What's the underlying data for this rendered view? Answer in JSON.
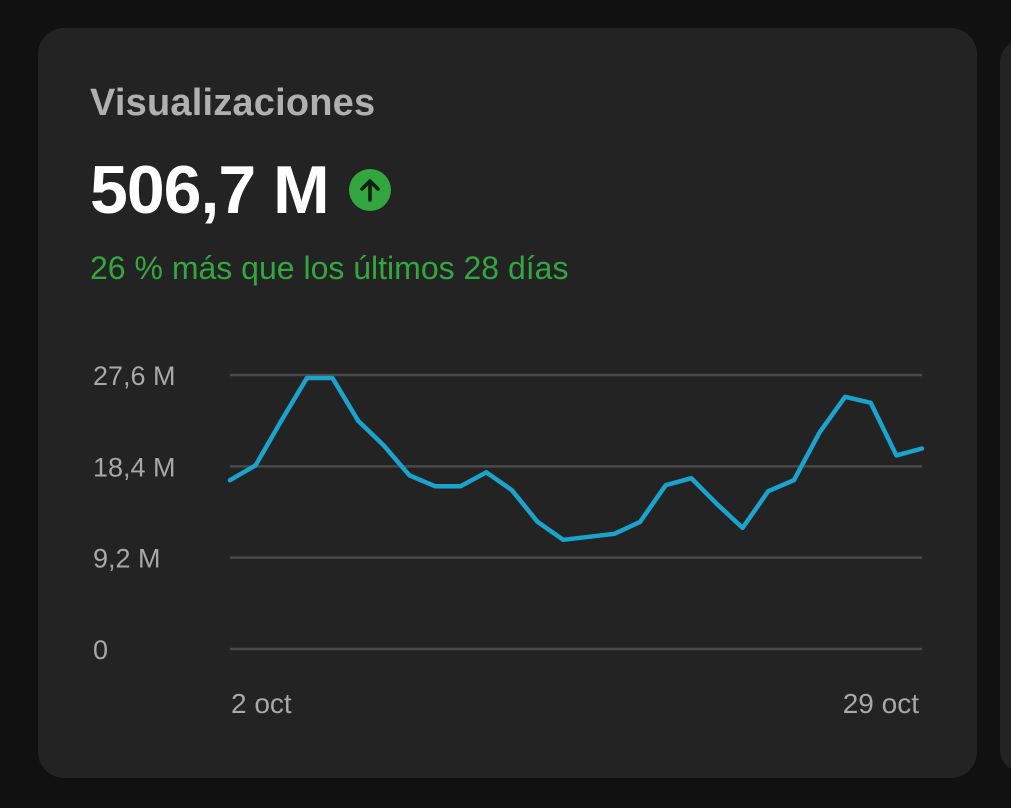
{
  "card": {
    "title": "Visualizaciones",
    "value": "506,7 M",
    "trend_icon": "arrow-up-circle-icon",
    "delta_text": "26 % más que los últimos 28 días"
  },
  "colors": {
    "card_bg": "#232323",
    "page_bg": "#111111",
    "positive": "#33a63f",
    "line": "#1aa3cc",
    "grid": "#4a4a4a",
    "axis_text": "#a8a8a8"
  },
  "chart_data": {
    "type": "line",
    "x_tick_labels": [
      "2 oct",
      "29 oct"
    ],
    "y_tick_labels": [
      "27,6 M",
      "18,4 M",
      "9,2 M",
      "0"
    ],
    "y_ticks": [
      27.6,
      18.4,
      9.2,
      0
    ],
    "ylim": [
      0,
      27.6
    ],
    "grid": true,
    "series": [
      {
        "x": [
          "2 oct",
          "3 oct",
          "4 oct",
          "5 oct",
          "6 oct",
          "7 oct",
          "8 oct",
          "9 oct",
          "10 oct",
          "11 oct",
          "12 oct",
          "13 oct",
          "14 oct",
          "15 oct",
          "16 oct",
          "17 oct",
          "18 oct",
          "19 oct",
          "20 oct",
          "21 oct",
          "22 oct",
          "23 oct",
          "24 oct",
          "25 oct",
          "26 oct",
          "27 oct",
          "28 oct",
          "29 oct"
        ],
        "values": [
          17.0,
          18.5,
          23.0,
          27.3,
          27.3,
          23.0,
          20.5,
          17.5,
          16.4,
          16.4,
          17.8,
          16.0,
          12.8,
          11.0,
          11.3,
          11.6,
          12.8,
          16.5,
          17.2,
          14.6,
          12.2,
          15.9,
          17.0,
          21.8,
          25.4,
          24.8,
          19.5,
          20.2
        ]
      }
    ]
  }
}
